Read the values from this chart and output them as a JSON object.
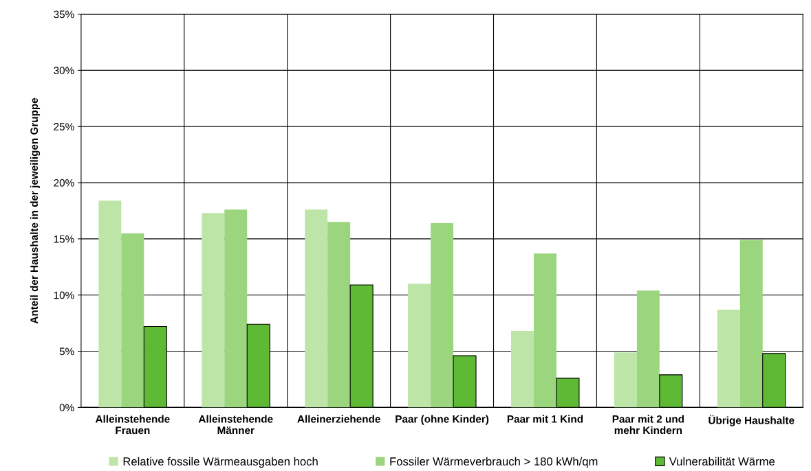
{
  "chart_data": {
    "type": "bar",
    "ylabel": "Anteil der Haushalte in der jeweiligen Gruppe",
    "categories": [
      "Alleinstehende\nFrauen",
      "Alleinstehende\nMänner",
      "Alleinerziehende",
      "Paar (ohne Kinder)",
      "Paar mit 1 Kind",
      "Paar mit 2 und\nmehr Kindern",
      "Übrige Haushalte"
    ],
    "series": [
      {
        "name": "Relative fossile Wärmeausgaben hoch",
        "color": "#bde5a8",
        "values": [
          18.4,
          17.3,
          17.6,
          11.0,
          6.8,
          4.9,
          8.7
        ]
      },
      {
        "name": "Fossiler Wärmeverbrauch > 180 kWh/qm",
        "color": "#9bd67f",
        "values": [
          15.5,
          17.6,
          16.5,
          16.4,
          13.7,
          10.4,
          14.9
        ]
      },
      {
        "name": "Vulnerabilität Wärme",
        "color": "#5eb935",
        "values": [
          7.2,
          7.4,
          10.9,
          4.6,
          2.6,
          2.9,
          4.8
        ]
      }
    ],
    "ylim": [
      0,
      35
    ],
    "yticks": [
      {
        "value": 0,
        "label": "0%"
      },
      {
        "value": 5,
        "label": "5%"
      },
      {
        "value": 10,
        "label": "10%"
      },
      {
        "value": 15,
        "label": "15%"
      },
      {
        "value": 20,
        "label": "20%"
      },
      {
        "value": 25,
        "label": "25%"
      },
      {
        "value": 30,
        "label": "30%"
      },
      {
        "value": 35,
        "label": "35%"
      }
    ],
    "grid": true,
    "legend": "bottom"
  }
}
